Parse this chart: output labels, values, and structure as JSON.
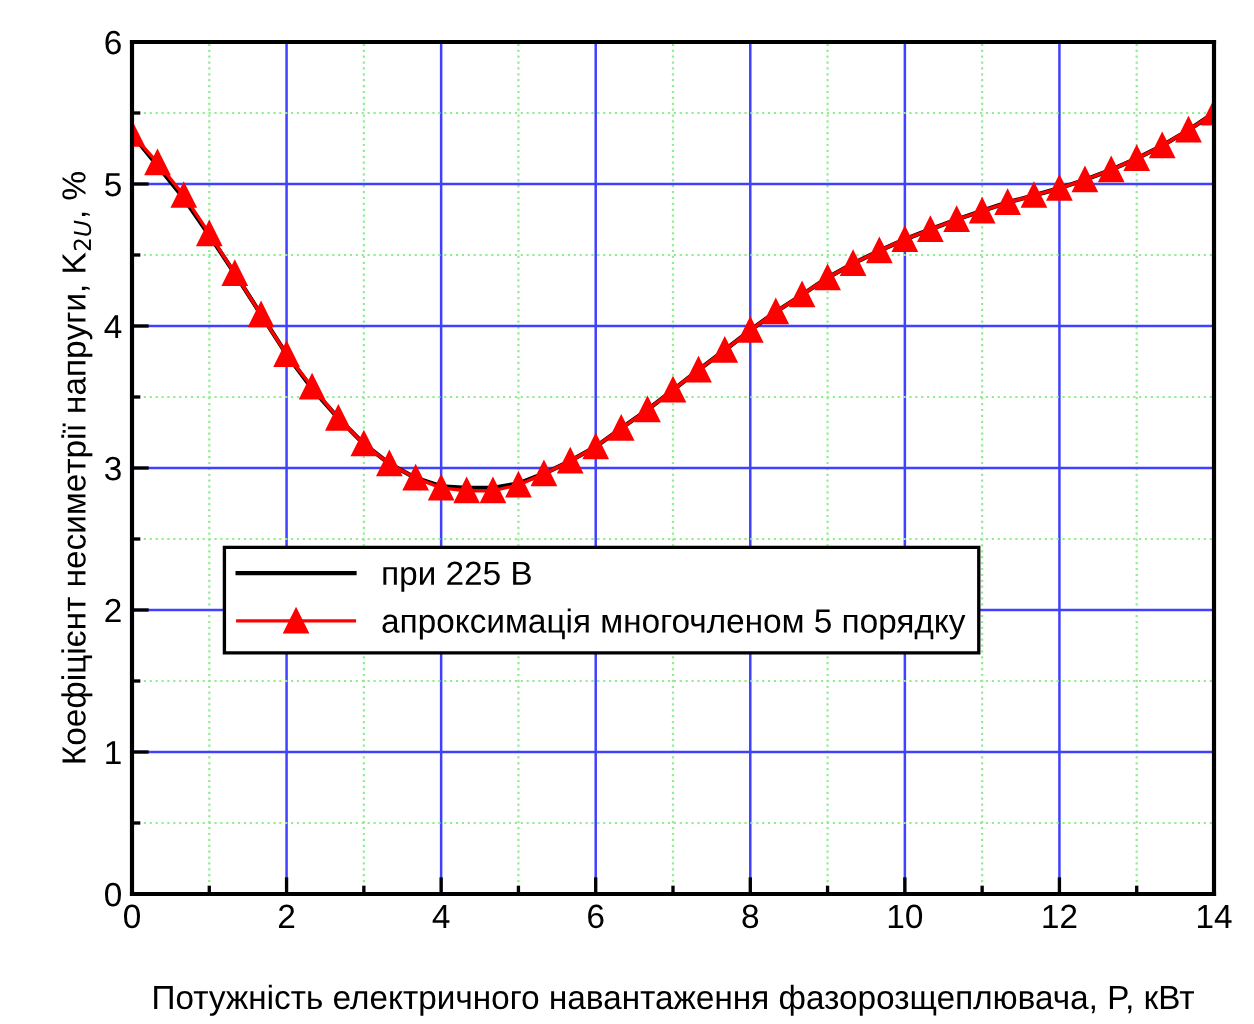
{
  "chart_data": {
    "type": "line",
    "xlabel": "Потужність електричного навантаження фазорозщеплювача, P, кВт",
    "ylabel": "Коефіцієнт несиметрії напруги, K$_{2U}$, %",
    "x": [
      0,
      0.33,
      0.67,
      1.0,
      1.33,
      1.67,
      2.0,
      2.33,
      2.67,
      3.0,
      3.33,
      3.67,
      4.0,
      4.33,
      4.67,
      5.0,
      5.33,
      5.67,
      6.0,
      6.33,
      6.67,
      7.0,
      7.33,
      7.67,
      8.0,
      8.33,
      8.67,
      9.0,
      9.33,
      9.67,
      10.0,
      10.33,
      10.67,
      11.0,
      11.33,
      11.67,
      12.0,
      12.33,
      12.67,
      13.0,
      13.33,
      13.67,
      14.0
    ],
    "series": [
      {
        "name": "при 225 В",
        "color": "#000000",
        "marker": "none",
        "values": [
          5.35,
          5.13,
          4.9,
          4.64,
          4.37,
          4.08,
          3.8,
          3.56,
          3.35,
          3.17,
          3.03,
          2.93,
          2.87,
          2.86,
          2.86,
          2.89,
          2.96,
          3.05,
          3.15,
          3.28,
          3.41,
          3.55,
          3.69,
          3.83,
          3.97,
          4.1,
          4.22,
          4.34,
          4.44,
          4.53,
          4.61,
          4.68,
          4.75,
          4.81,
          4.87,
          4.92,
          4.97,
          5.03,
          5.1,
          5.18,
          5.27,
          5.38,
          5.5
        ]
      },
      {
        "name": "апроксимація многочленом 5 порядку",
        "color": "#ff0000",
        "marker": "triangle",
        "values": [
          5.35,
          5.15,
          4.92,
          4.65,
          4.37,
          4.08,
          3.8,
          3.57,
          3.35,
          3.17,
          3.03,
          2.93,
          2.86,
          2.84,
          2.84,
          2.88,
          2.96,
          3.05,
          3.15,
          3.28,
          3.41,
          3.55,
          3.69,
          3.83,
          3.97,
          4.1,
          4.22,
          4.34,
          4.44,
          4.53,
          4.61,
          4.68,
          4.75,
          4.81,
          4.87,
          4.92,
          4.97,
          5.03,
          5.1,
          5.18,
          5.27,
          5.38,
          5.5
        ]
      }
    ],
    "xlim": [
      0,
      14
    ],
    "ylim": [
      0,
      6
    ],
    "xticks": [
      0,
      {
        "value": 1,
        "label": null
      },
      2,
      {
        "value": 3,
        "label": null
      },
      4,
      {
        "value": 5,
        "label": null
      },
      6,
      {
        "value": 7,
        "label": null
      },
      8,
      {
        "value": 9,
        "label": null
      },
      10,
      {
        "value": 11,
        "label": null
      },
      12,
      {
        "value": 13,
        "label": null
      },
      14
    ],
    "yticks": [
      0,
      {
        "value": 0.5,
        "label": null
      },
      1,
      {
        "value": 1.5,
        "label": null
      },
      2,
      {
        "value": 2.5,
        "label": null
      },
      3,
      {
        "value": 3.5,
        "label": null
      },
      4,
      {
        "value": 4.5,
        "label": null
      },
      5,
      {
        "value": 5.5,
        "label": null
      },
      6
    ],
    "grid": true,
    "legend": "center left",
    "line_style": "solid"
  }
}
